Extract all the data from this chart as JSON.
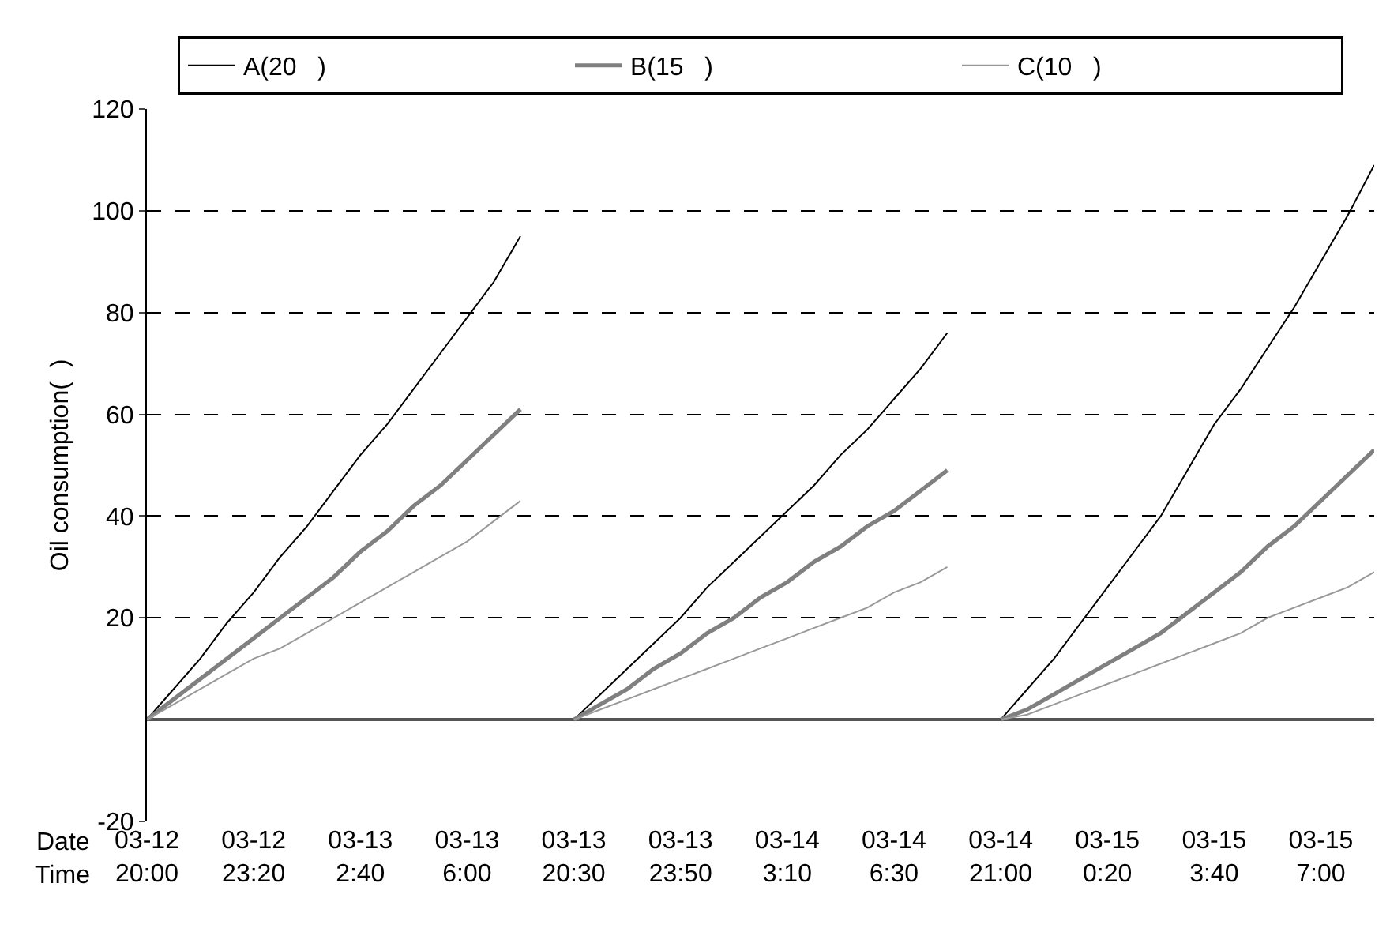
{
  "chart_data": {
    "type": "line",
    "ylabel": "Oil consumption(  )",
    "categories": [
      "03-12\n20:00",
      null,
      null,
      null,
      "03-12\n23:20",
      null,
      null,
      null,
      "03-13\n2:40",
      null,
      null,
      null,
      "03-13\n6:00",
      null,
      null,
      null,
      "03-13\n20:30",
      null,
      null,
      null,
      "03-13\n23:50",
      null,
      null,
      null,
      "03-14\n3:10",
      null,
      null,
      null,
      "03-14\n6:30",
      null,
      null,
      null,
      "03-14\n21:00",
      null,
      null,
      null,
      "03-15\n0:20",
      null,
      null,
      null,
      "03-15\n3:40",
      null,
      null,
      null,
      "03-15\n7:00",
      null,
      null
    ],
    "series": [
      {
        "name": "A(20   )",
        "color": "#000000",
        "values": [
          0,
          6,
          12,
          19,
          25,
          32,
          38,
          45,
          52,
          58,
          65,
          72,
          79,
          86,
          95,
          null,
          0,
          5,
          10,
          15,
          20,
          26,
          31,
          36,
          41,
          46,
          52,
          57,
          63,
          69,
          76,
          null,
          0,
          6,
          12,
          19,
          26,
          33,
          40,
          49,
          58,
          65,
          73,
          81,
          90,
          99,
          109
        ]
      },
      {
        "name": "B(15   )",
        "color": "#808080",
        "values": [
          0,
          4,
          8,
          12,
          16,
          20,
          24,
          28,
          33,
          37,
          42,
          46,
          51,
          56,
          61,
          null,
          0,
          3,
          6,
          10,
          13,
          17,
          20,
          24,
          27,
          31,
          34,
          38,
          41,
          45,
          49,
          null,
          0,
          2,
          5,
          8,
          11,
          14,
          17,
          21,
          25,
          29,
          34,
          38,
          43,
          48,
          53
        ]
      },
      {
        "name": "C(10   )",
        "color": "#999999",
        "values": [
          0,
          3,
          6,
          9,
          12,
          14,
          17,
          20,
          23,
          26,
          29,
          32,
          35,
          39,
          43,
          null,
          0,
          2,
          4,
          6,
          8,
          10,
          12,
          14,
          16,
          18,
          20,
          22,
          25,
          27,
          30,
          null,
          0,
          1,
          3,
          5,
          7,
          9,
          11,
          13,
          15,
          17,
          20,
          22,
          24,
          26,
          29
        ]
      }
    ],
    "ylim": [
      -20,
      120
    ],
    "yticks": [
      -20,
      20,
      40,
      60,
      80,
      100,
      120
    ],
    "annotations": [
      "Date",
      "Time"
    ],
    "grid": "y",
    "legend": "top",
    "marker": "none",
    "line_style": "solid"
  }
}
